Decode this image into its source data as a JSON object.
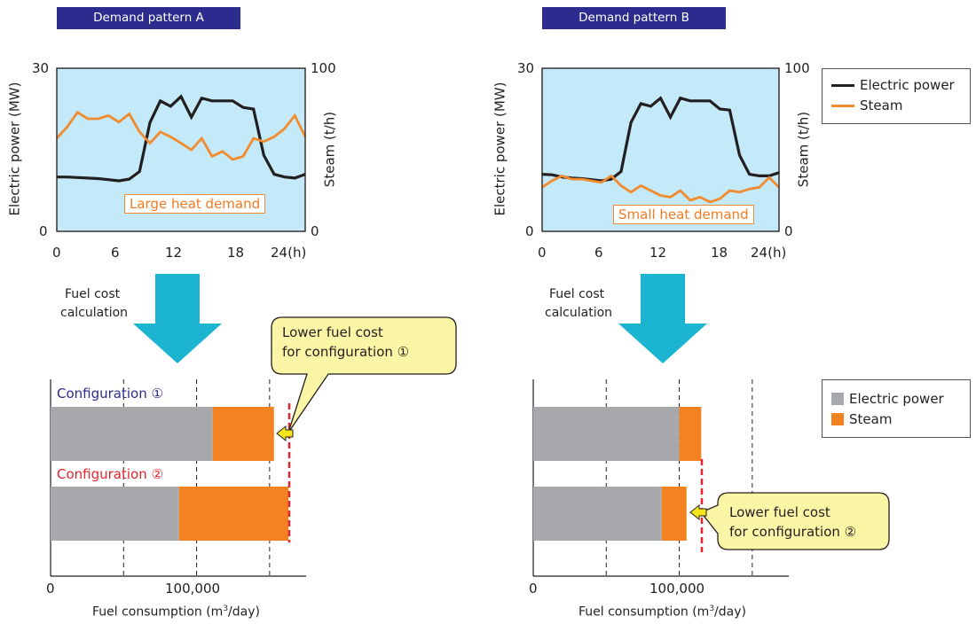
{
  "banners": {
    "a": "Demand pattern A",
    "b": "Demand pattern B"
  },
  "line_axes": {
    "left_label": "Electric power (MW)",
    "right_label": "Steam (t/h)",
    "left_ticks": [
      "30",
      "0"
    ],
    "right_ticks": [
      "100",
      "0"
    ],
    "x_ticks": [
      "0",
      "6",
      "12",
      "18",
      "24(h)"
    ]
  },
  "heat_labels": {
    "a": "Large heat demand",
    "b": "Small heat demand"
  },
  "arrow_text": {
    "line1": "Fuel cost",
    "line2": "calculation"
  },
  "callouts": {
    "a": {
      "line1": "Lower fuel cost",
      "line2": "for configuration ①"
    },
    "b": {
      "line1": "Lower fuel cost",
      "line2": "for configuration ②"
    }
  },
  "config_labels": {
    "one": "Configuration ①",
    "two": "Configuration ②"
  },
  "bar_axes": {
    "x_ticks": [
      "0",
      "100,000"
    ],
    "xlabel_main": "Fuel consumption (m",
    "xlabel_sup": "3",
    "xlabel_end": "/day)"
  },
  "legends": {
    "lines": [
      {
        "name": "Electric power",
        "color": "#231f20"
      },
      {
        "name": "Steam",
        "color": "#f18b2e"
      }
    ],
    "bars": [
      {
        "name": "Electric power",
        "color": "#a7a8ab"
      },
      {
        "name": "Steam",
        "color": "#f48220"
      }
    ]
  },
  "colors": {
    "plot_bg": "#c4e9f9",
    "cyan_arrow": "#1bb4d1",
    "callout_bg": "#fbf5a6",
    "dashed_red": "#e8232c"
  },
  "chart_data": [
    {
      "type": "line",
      "x": [
        0,
        1,
        2,
        3,
        4,
        5,
        6,
        7,
        8,
        9,
        10,
        11,
        12,
        13,
        14,
        15,
        16,
        17,
        18,
        19,
        20,
        21,
        22,
        23,
        24
      ],
      "series": [
        {
          "name": "Electric power",
          "axis": "left",
          "values": [
            10,
            10,
            9.9,
            9.8,
            9.7,
            9.5,
            9.3,
            9.6,
            11,
            20,
            24,
            23,
            24.8,
            21,
            24.5,
            24,
            24,
            24,
            22.8,
            22.5,
            14,
            10.5,
            10,
            9.8,
            10.5
          ]
        },
        {
          "name": "Steam",
          "axis": "right",
          "values": [
            57,
            64,
            73,
            69,
            69,
            71,
            67,
            72,
            61,
            54,
            61,
            58,
            54,
            50,
            57,
            46,
            49,
            44,
            46,
            57,
            55,
            58,
            63,
            71,
            58
          ]
        }
      ],
      "ylim_left": [
        0,
        30
      ],
      "ylim_right": [
        0,
        100
      ],
      "xlim": [
        0,
        24
      ]
    },
    {
      "type": "line",
      "x": [
        0,
        1,
        2,
        3,
        4,
        5,
        6,
        7,
        8,
        9,
        10,
        11,
        12,
        13,
        14,
        15,
        16,
        17,
        18,
        19,
        20,
        21,
        22,
        23,
        24
      ],
      "series": [
        {
          "name": "Electric power",
          "axis": "left",
          "values": [
            10.5,
            10.4,
            10,
            9.8,
            9.7,
            9.5,
            9.3,
            9.6,
            11,
            20,
            23.5,
            23,
            24.5,
            21,
            24.5,
            24,
            24,
            24,
            22.5,
            22.3,
            14,
            10.5,
            10.2,
            10.2,
            10.8
          ]
        },
        {
          "name": "Steam",
          "axis": "right",
          "values": [
            27,
            31,
            34,
            32,
            32,
            31,
            30,
            34,
            28,
            24,
            28,
            25,
            22,
            21,
            25,
            19,
            21,
            18,
            20,
            25,
            24,
            26,
            27,
            33,
            27
          ]
        }
      ],
      "ylim_left": [
        0,
        30
      ],
      "ylim_right": [
        0,
        100
      ],
      "xlim": [
        0,
        24
      ]
    },
    {
      "type": "bar",
      "orientation": "horizontal",
      "stacked": true,
      "categories": [
        "Configuration ①",
        "Configuration ②"
      ],
      "series": [
        {
          "name": "Electric power",
          "values": [
            111000,
            88000
          ]
        },
        {
          "name": "Steam",
          "values": [
            42000,
            75000
          ]
        }
      ],
      "xlim": [
        0,
        175000
      ]
    },
    {
      "type": "bar",
      "orientation": "horizontal",
      "stacked": true,
      "categories": [
        "Configuration ①",
        "Configuration ②"
      ],
      "series": [
        {
          "name": "Electric power",
          "values": [
            100000,
            88000
          ]
        },
        {
          "name": "Steam",
          "values": [
            15000,
            17000
          ]
        }
      ],
      "xlim": [
        0,
        175000
      ]
    }
  ]
}
